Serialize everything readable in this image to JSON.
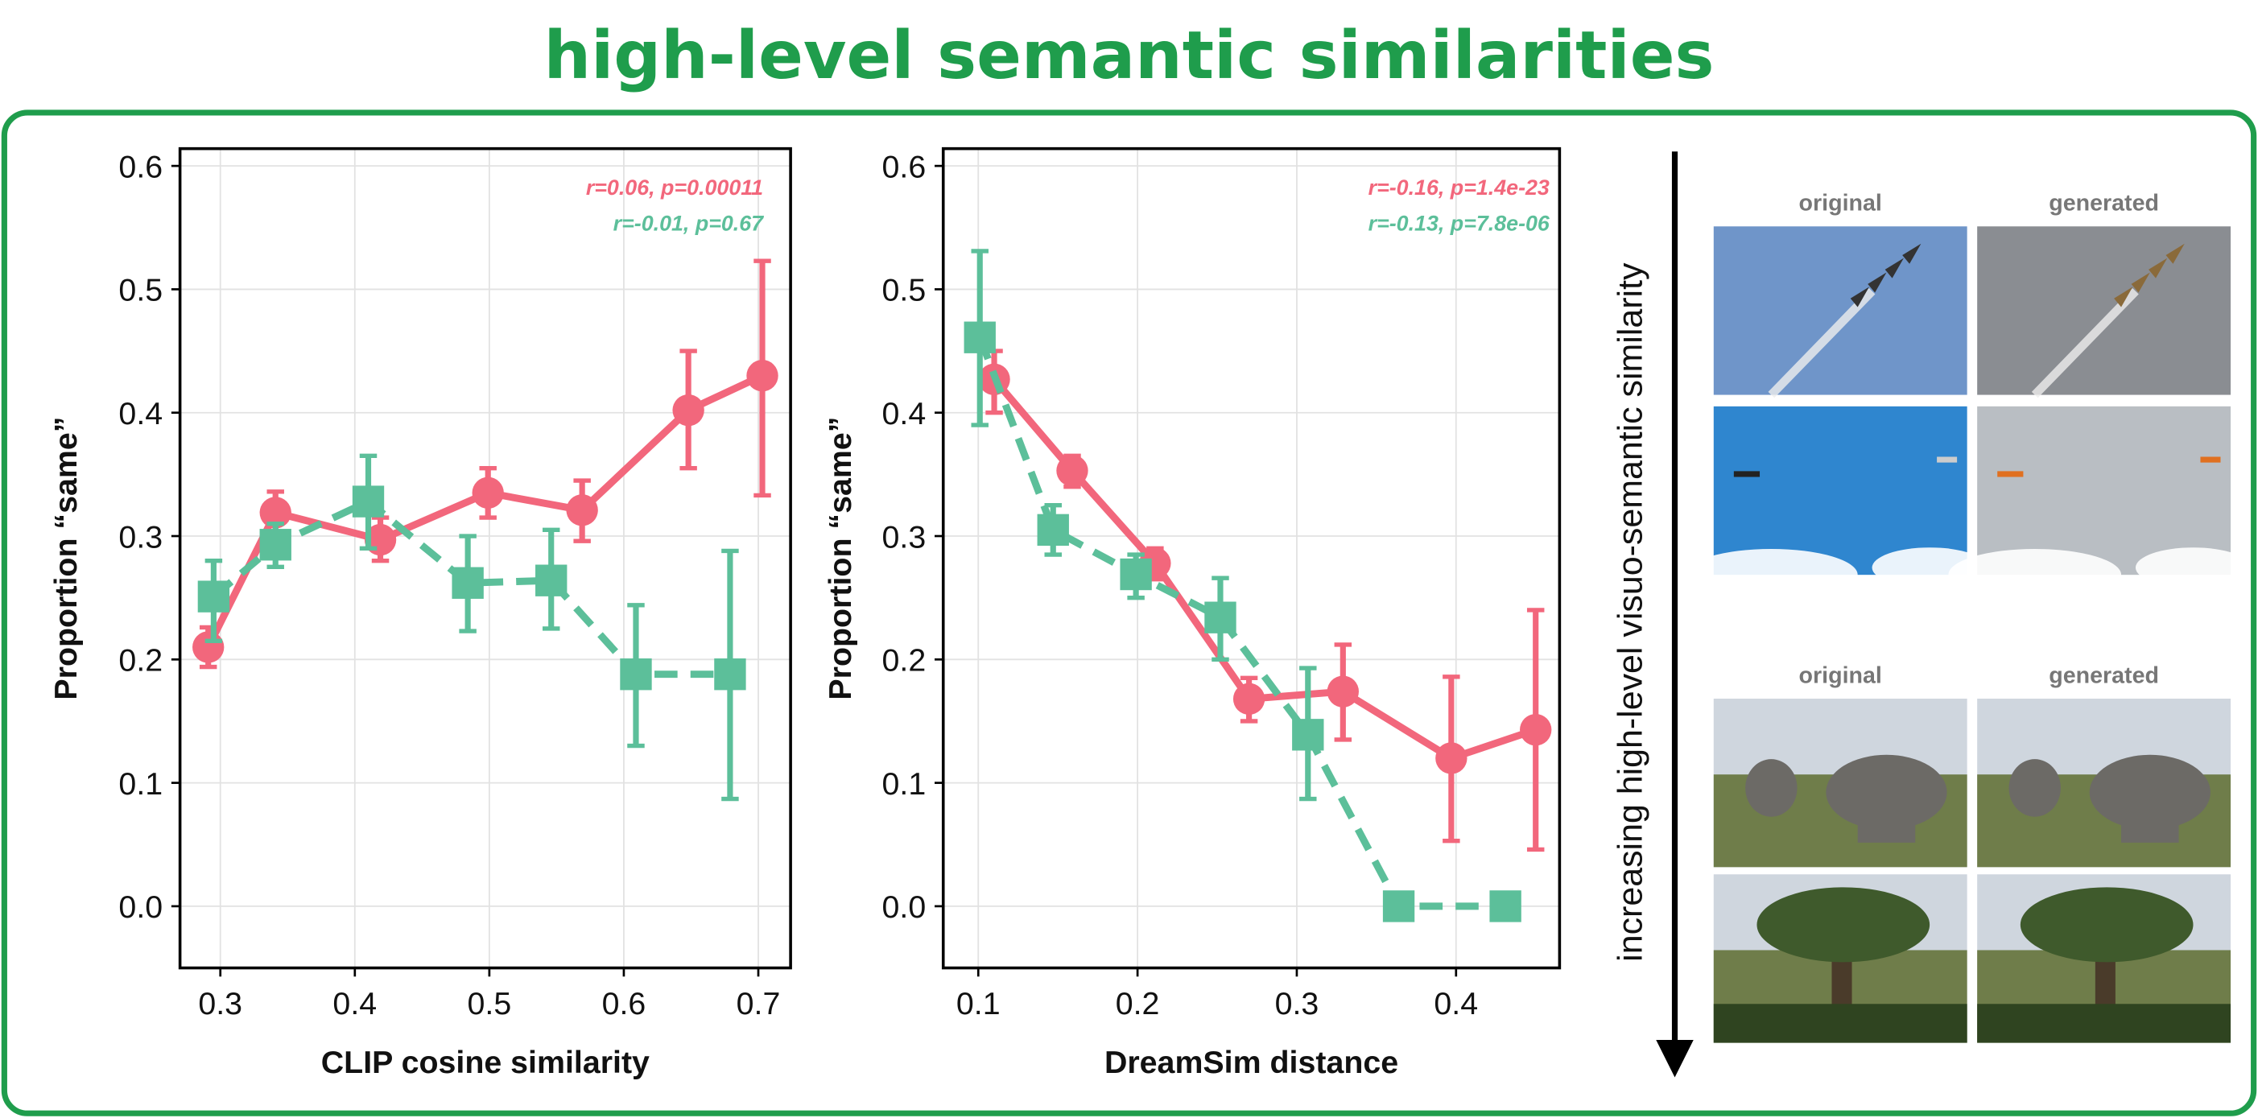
{
  "title": "high-level semantic similarities",
  "colors": {
    "accent": "#1f9d4c",
    "pink": "#f2677c",
    "teal": "#5cbf9a"
  },
  "arrow_label": "increasing high-level visuo-semantic similarity",
  "image_panels": [
    {
      "labels": [
        "original",
        "generated"
      ],
      "rows": [
        {
          "original": "sky-jets",
          "generated": "sky-jets-generated"
        },
        {
          "original": "sky-planes-clouds",
          "generated": "sky-planes-generated"
        }
      ]
    },
    {
      "labels": [
        "original",
        "generated"
      ],
      "rows": [
        {
          "original": "elephants",
          "generated": "elephants-generated"
        },
        {
          "original": "acacia-giraffes",
          "generated": "acacia-giraffes-generated"
        }
      ]
    }
  ],
  "chart_data": [
    {
      "type": "line",
      "xlabel": "CLIP cosine similarity",
      "ylabel": "Proportion “same”",
      "xlim": [
        0.27,
        0.724
      ],
      "ylim": [
        -0.05,
        0.614
      ],
      "xticks": [
        "0.3",
        "0.4",
        "0.5",
        "0.6",
        "0.7"
      ],
      "yticks": [
        "0.0",
        "0.1",
        "0.2",
        "0.3",
        "0.4",
        "0.5",
        "0.6"
      ],
      "grid": true,
      "stats": [
        "r=0.06, p=0.00011",
        "r=-0.01, p=0.67"
      ],
      "series": [
        {
          "name": "pink",
          "marker": "circle",
          "style": "solid",
          "x": [
            0.291,
            0.341,
            0.419,
            0.499,
            0.569,
            0.648,
            0.703
          ],
          "y": [
            0.21,
            0.319,
            0.297,
            0.335,
            0.321,
            0.402,
            0.43
          ],
          "err_low": [
            0.194,
            0.302,
            0.28,
            0.315,
            0.296,
            0.355,
            0.333
          ],
          "err_high": [
            0.226,
            0.336,
            0.315,
            0.355,
            0.345,
            0.45,
            0.523
          ]
        },
        {
          "name": "teal",
          "marker": "square",
          "style": "dashed",
          "x": [
            0.295,
            0.341,
            0.41,
            0.484,
            0.546,
            0.609,
            0.679
          ],
          "y": [
            0.251,
            0.293,
            0.328,
            0.262,
            0.264,
            0.188,
            0.188
          ],
          "err_low": [
            0.215,
            0.275,
            0.29,
            0.223,
            0.225,
            0.13,
            0.087
          ],
          "err_high": [
            0.28,
            0.31,
            0.365,
            0.3,
            0.305,
            0.244,
            0.288
          ]
        }
      ]
    },
    {
      "type": "line",
      "xlabel": "DreamSim distance",
      "ylabel": "Proportion “same”",
      "xlim": [
        0.078,
        0.465
      ],
      "ylim": [
        -0.05,
        0.614
      ],
      "xticks": [
        "0.1",
        "0.2",
        "0.3",
        "0.4"
      ],
      "yticks": [
        "0.0",
        "0.1",
        "0.2",
        "0.3",
        "0.4",
        "0.5",
        "0.6"
      ],
      "grid": true,
      "stats": [
        "r=-0.16, p=1.4e-23",
        "r=-0.13, p=7.8e-06"
      ],
      "series": [
        {
          "name": "pink",
          "marker": "circle",
          "style": "solid",
          "x": [
            0.11,
            0.159,
            0.211,
            0.27,
            0.329,
            0.397,
            0.45
          ],
          "y": [
            0.427,
            0.353,
            0.278,
            0.168,
            0.174,
            0.12,
            0.143
          ],
          "err_low": [
            0.4,
            0.34,
            0.265,
            0.15,
            0.135,
            0.053,
            0.046
          ],
          "err_high": [
            0.45,
            0.365,
            0.29,
            0.185,
            0.212,
            0.186,
            0.24
          ]
        },
        {
          "name": "teal",
          "marker": "square",
          "style": "dashed",
          "x": [
            0.101,
            0.147,
            0.199,
            0.252,
            0.307,
            0.364,
            0.431
          ],
          "y": [
            0.461,
            0.305,
            0.269,
            0.234,
            0.139,
            0.0,
            0.0
          ],
          "err_low": [
            0.39,
            0.285,
            0.25,
            0.2,
            0.087,
            0.0,
            0.0
          ],
          "err_high": [
            0.531,
            0.325,
            0.285,
            0.266,
            0.193,
            0.0,
            0.0
          ]
        }
      ]
    }
  ]
}
